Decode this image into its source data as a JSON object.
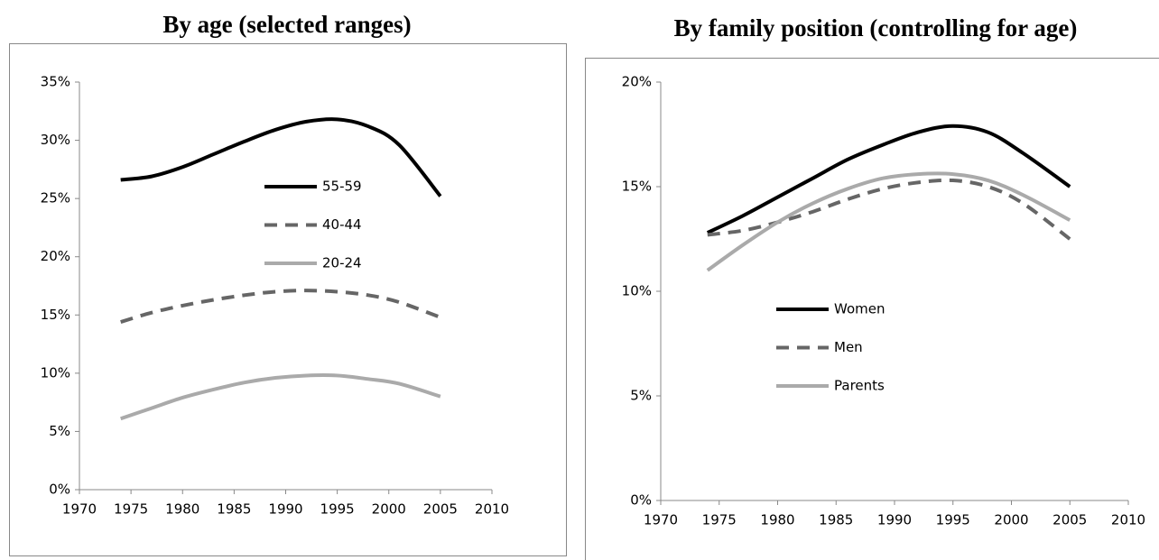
{
  "chart_data": [
    {
      "type": "line",
      "title": "By age (selected ranges)",
      "x": [
        1974,
        1977,
        1980,
        1983,
        1986,
        1989,
        1992,
        1995,
        1998,
        2001,
        2005
      ],
      "series": [
        {
          "name": "55-59",
          "color": "#000000",
          "style": "solid",
          "values": [
            26.6,
            26.9,
            27.7,
            28.8,
            29.9,
            30.9,
            31.6,
            31.8,
            31.2,
            29.6,
            25.2
          ]
        },
        {
          "name": "40-44",
          "color": "#666666",
          "style": "dashed",
          "values": [
            14.4,
            15.2,
            15.8,
            16.3,
            16.7,
            17.0,
            17.1,
            17.0,
            16.7,
            16.1,
            14.8
          ]
        },
        {
          "name": "20-24",
          "color": "#aaaaaa",
          "style": "solid",
          "values": [
            6.1,
            7.0,
            7.9,
            8.6,
            9.2,
            9.6,
            9.8,
            9.8,
            9.5,
            9.1,
            8.0
          ]
        }
      ],
      "xlim": [
        1970,
        2010
      ],
      "xticks": [
        1970,
        1975,
        1980,
        1985,
        1990,
        1995,
        2000,
        2005,
        2010
      ],
      "ylim": [
        0,
        35
      ],
      "yticks": [
        {
          "value": 0,
          "label": "0%"
        },
        {
          "value": 5,
          "label": "5%"
        },
        {
          "value": 10,
          "label": "10%"
        },
        {
          "value": 15,
          "label": "15%"
        },
        {
          "value": 20,
          "label": "20%"
        },
        {
          "value": 25,
          "label": "25%"
        },
        {
          "value": 30,
          "label": "30%"
        },
        {
          "value": 35,
          "label": "35%"
        }
      ],
      "grid": false,
      "legend": "center right"
    },
    {
      "type": "line",
      "title": "By family position (controlling for age)",
      "x": [
        1974,
        1977,
        1980,
        1983,
        1986,
        1989,
        1992,
        1995,
        1998,
        2001,
        2005
      ],
      "series": [
        {
          "name": "Women",
          "color": "#000000",
          "style": "solid",
          "values": [
            12.8,
            13.6,
            14.5,
            15.4,
            16.3,
            17.0,
            17.6,
            17.9,
            17.6,
            16.6,
            15.0
          ]
        },
        {
          "name": "Men",
          "color": "#666666",
          "style": "dashed",
          "values": [
            12.7,
            12.9,
            13.3,
            13.8,
            14.4,
            14.9,
            15.2,
            15.3,
            15.0,
            14.2,
            12.5
          ]
        },
        {
          "name": "Parents",
          "color": "#aaaaaa",
          "style": "solid",
          "values": [
            11.0,
            12.2,
            13.3,
            14.2,
            14.9,
            15.4,
            15.6,
            15.6,
            15.3,
            14.6,
            13.4
          ]
        }
      ],
      "xlim": [
        1970,
        2010
      ],
      "xticks": [
        1970,
        1975,
        1980,
        1985,
        1990,
        1995,
        2000,
        2005,
        2010
      ],
      "ylim": [
        0,
        20
      ],
      "yticks": [
        {
          "value": 0,
          "label": "0%"
        },
        {
          "value": 5,
          "label": "5%"
        },
        {
          "value": 10,
          "label": "10%"
        },
        {
          "value": 15,
          "label": "15%"
        },
        {
          "value": 20,
          "label": "20%"
        }
      ],
      "grid": false,
      "legend": "center left"
    }
  ]
}
